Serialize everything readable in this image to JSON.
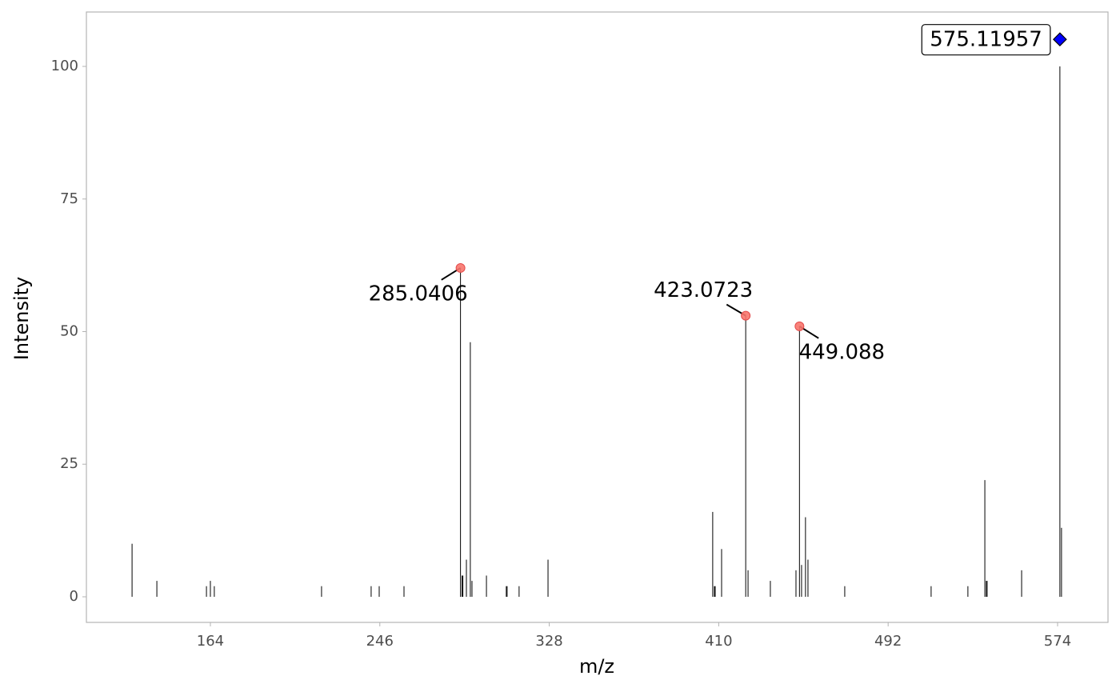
{
  "chart_data": {
    "type": "spectrum",
    "x_label": "m/z",
    "y_label": "Intensity",
    "xlim": [
      104.0,
      598.4
    ],
    "ylim": [
      -4.83,
      110.26
    ],
    "xticks": [
      164,
      246,
      328,
      410,
      492,
      574
    ],
    "yticks": [
      0,
      25,
      50,
      75,
      100
    ],
    "color": "#000000",
    "x": [
      126.1,
      138.1,
      162.1,
      164.0,
      165.9,
      217.8,
      241.8,
      245.7,
      257.7,
      285.0406,
      285.8,
      286.2,
      287.9,
      289.8,
      290.6,
      297.6,
      307.2,
      307.6,
      313.4,
      327.4,
      407.1,
      407.9,
      408.3,
      411.4,
      423.0723,
      424.2,
      435.0,
      447.4,
      449.088,
      450.1,
      452.0,
      453.2,
      471.0,
      512.8,
      530.6,
      538.8,
      539.5,
      539.9,
      556.6,
      575.11957,
      575.9
    ],
    "values": [
      10,
      3,
      2,
      3,
      2,
      2,
      2,
      2,
      2,
      62,
      4,
      4,
      7,
      48,
      3,
      4,
      2,
      2,
      2,
      7,
      16,
      2,
      2,
      9,
      53,
      5,
      3,
      5,
      51,
      6,
      15,
      7,
      2,
      2,
      2,
      22,
      3,
      3,
      5,
      100,
      13
    ],
    "highlight_color": "#f8766d",
    "highlights": [
      {
        "x": 285.0406,
        "y": 62,
        "label": "285.0406"
      },
      {
        "x": 423.0723,
        "y": 53,
        "label": "423.0723"
      },
      {
        "x": 449.088,
        "y": 51,
        "label": "449.088"
      }
    ],
    "precursor": {
      "x": 575.11957,
      "y": 105.1,
      "label": "575.11957",
      "color": "#0000ff"
    }
  }
}
